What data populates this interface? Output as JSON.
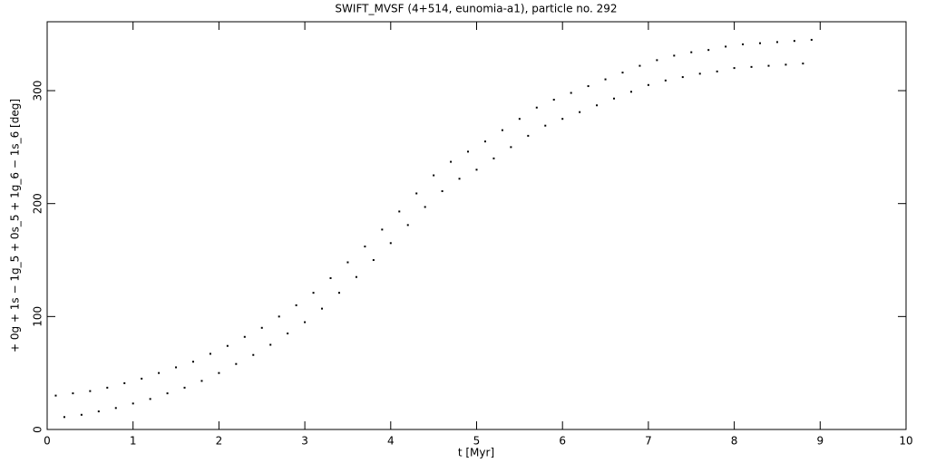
{
  "chart_data": {
    "type": "scatter",
    "title": "SWIFT_MVSF (4+514, eunomia-a1), particle no. 292",
    "x_label": "t [Myr]",
    "y_label": "+ 0g + 1s − 1g_5 + 0s_5 + 1g_6 − 1s_6 [deg]",
    "color": "#000000",
    "xlim": [
      0,
      10
    ],
    "ylim": [
      0,
      361
    ],
    "xticks": [
      0,
      1,
      2,
      3,
      4,
      5,
      6,
      7,
      8,
      9,
      10
    ],
    "yticks": [
      0,
      100,
      200,
      300
    ],
    "x": [
      0.1,
      0.2,
      0.3,
      0.4,
      0.5,
      0.6,
      0.7,
      0.8,
      0.9,
      1.0,
      1.1,
      1.2,
      1.3,
      1.4,
      1.5,
      1.6,
      1.7,
      1.8,
      1.9,
      2.0,
      2.1,
      2.2,
      2.3,
      2.4,
      2.5,
      2.6,
      2.7,
      2.8,
      2.9,
      3.0,
      3.1,
      3.2,
      3.3,
      3.4,
      3.5,
      3.6,
      3.7,
      3.8,
      3.9,
      4.0,
      4.1,
      4.2,
      4.3,
      4.4,
      4.5,
      4.6,
      4.7,
      4.8,
      4.9,
      5.0,
      5.1,
      5.2,
      5.3,
      5.4,
      5.5,
      5.6,
      5.7,
      5.8,
      5.9,
      6.0,
      6.1,
      6.2,
      6.3,
      6.4,
      6.5,
      6.6,
      6.7,
      6.8,
      6.9,
      7.0,
      7.1,
      7.2,
      7.3,
      7.4,
      7.5,
      7.6,
      7.7,
      7.8,
      7.9,
      8.0,
      8.1,
      8.2,
      8.3,
      8.4,
      8.5,
      8.6,
      8.7,
      8.8,
      8.9
    ],
    "values": [
      30,
      11,
      32,
      13,
      34,
      16,
      37,
      19,
      41,
      23,
      45,
      27,
      50,
      32,
      55,
      37,
      60,
      43,
      67,
      50,
      74,
      58,
      82,
      66,
      90,
      75,
      100,
      85,
      110,
      95,
      121,
      107,
      134,
      121,
      148,
      135,
      162,
      150,
      177,
      165,
      193,
      181,
      209,
      197,
      225,
      211,
      237,
      222,
      246,
      230,
      255,
      240,
      265,
      250,
      275,
      260,
      285,
      269,
      292,
      275,
      298,
      281,
      304,
      287,
      310,
      293,
      316,
      299,
      322,
      305,
      327,
      309,
      331,
      312,
      334,
      315,
      336,
      317,
      339,
      320,
      341,
      321,
      342,
      322,
      343,
      323,
      344,
      324,
      345
    ]
  }
}
